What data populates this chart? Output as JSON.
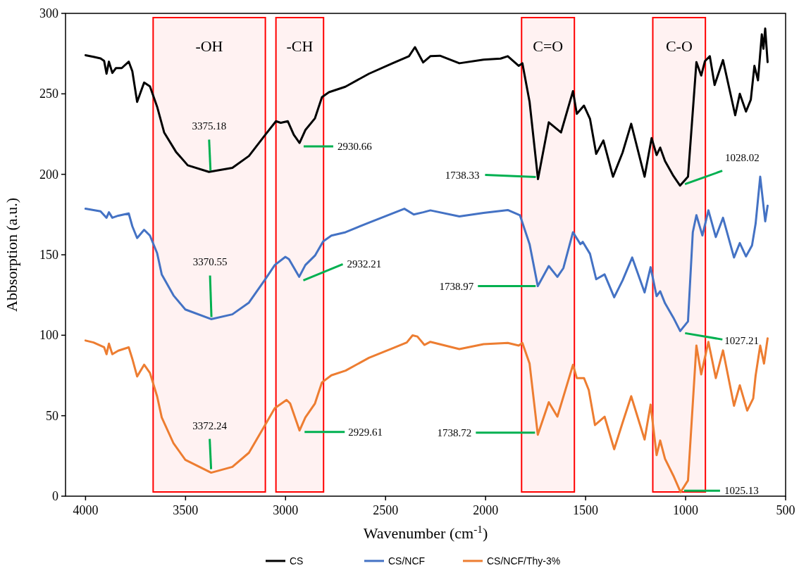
{
  "chart_data": {
    "type": "line",
    "xlabel": "Wavenumber (cm$^{-1}$)",
    "ylabel": "Abbsorption (a.u.)",
    "xlim": [
      4100,
      500
    ],
    "xticks": [
      4000,
      3500,
      3000,
      2500,
      2000,
      1500,
      1000,
      500
    ],
    "ylim": [
      0,
      300
    ],
    "yticks": [
      0,
      50,
      100,
      150,
      200,
      250,
      300
    ],
    "grid": false,
    "legend": "bottom",
    "marker": "none",
    "line_style": "solid",
    "series": [
      {
        "name": "CS",
        "color": "#000000",
        "x": [
          4000,
          3960,
          3925,
          3907,
          3895,
          3883,
          3866,
          3848,
          3819,
          3784,
          3766,
          3742,
          3707,
          3678,
          3642,
          3607,
          3548,
          3489,
          3383,
          3266,
          3183,
          3101,
          3048,
          3024,
          2989,
          2959,
          2930,
          2901,
          2853,
          2818,
          2783,
          2701,
          2583,
          2465,
          2383,
          2353,
          2312,
          2276,
          2228,
          2131,
          2010,
          1925,
          1889,
          1834,
          1816,
          1780,
          1738,
          1684,
          1623,
          1563,
          1544,
          1508,
          1478,
          1447,
          1411,
          1363,
          1315,
          1272,
          1205,
          1170,
          1145,
          1127,
          1103,
          1061,
          1028,
          988,
          946,
          922,
          903,
          879,
          855,
          813,
          752,
          729,
          698,
          674,
          656,
          638,
          619,
          611,
          602,
          590
        ],
        "values": [
          274,
          273,
          272,
          270.5,
          262.5,
          270,
          263,
          266,
          266,
          270,
          264,
          245,
          257,
          254.6,
          242,
          226,
          214,
          205.6,
          201.5,
          204,
          211.4,
          224.6,
          233,
          232,
          233,
          224.6,
          219.5,
          227.5,
          234.8,
          248,
          251,
          254.4,
          262.5,
          269,
          273.4,
          279,
          269.5,
          273.4,
          273.7,
          269,
          271.2,
          271.9,
          273.4,
          267.4,
          269,
          245,
          197,
          232.3,
          226,
          251.7,
          237.6,
          242.7,
          234.5,
          212.7,
          221,
          198.5,
          213.5,
          231.4,
          198.5,
          222.5,
          212,
          216.6,
          208.3,
          199,
          193,
          198.5,
          269.7,
          261.4,
          270.4,
          273.4,
          255.5,
          271,
          236.7,
          250,
          239,
          246.4,
          267.4,
          258.4,
          287,
          278,
          290.6,
          269.7
        ]
      },
      {
        "name": "CS/NCF",
        "color": "#4472c4",
        "x": [
          4000,
          3925,
          3895,
          3883,
          3866,
          3836,
          3784,
          3766,
          3742,
          3707,
          3678,
          3642,
          3619,
          3560,
          3501,
          3372,
          3266,
          3183,
          3101,
          3054,
          3001,
          2983,
          2932,
          2901,
          2853,
          2812,
          2771,
          2700,
          2583,
          2406,
          2359,
          2312,
          2276,
          2131,
          2010,
          1889,
          1828,
          1780,
          1739,
          1684,
          1641,
          1611,
          1563,
          1526,
          1514,
          1478,
          1447,
          1405,
          1357,
          1315,
          1267,
          1205,
          1175,
          1145,
          1127,
          1103,
          1061,
          1027,
          988,
          964,
          946,
          916,
          886,
          849,
          813,
          758,
          729,
          698,
          668,
          650,
          627,
          602,
          590
        ],
        "values": [
          178.6,
          177,
          173,
          176.4,
          173,
          174.3,
          175.7,
          167.7,
          160.4,
          165.5,
          161.9,
          151,
          137.8,
          124.7,
          116,
          110,
          113,
          120.3,
          134.9,
          143.6,
          148.7,
          147.3,
          136.3,
          143.6,
          149.5,
          158.3,
          161.9,
          164,
          170,
          178.6,
          175,
          176.4,
          177.6,
          173.8,
          176,
          177.8,
          174.5,
          156.6,
          130.5,
          143,
          136.3,
          141.7,
          164,
          156.6,
          158,
          150.6,
          134.8,
          137.8,
          123.6,
          134.1,
          148.3,
          126.6,
          142.3,
          124.3,
          127.3,
          119.9,
          110.9,
          102.6,
          108.6,
          164,
          174.6,
          162,
          177.6,
          161,
          173,
          148.3,
          157.3,
          149,
          155.8,
          169.3,
          198.5,
          170.8,
          180.5
        ]
      },
      {
        "name": "CS/NCF/Thy-3%",
        "color": "#ed7d31",
        "x": [
          4000,
          3960,
          3907,
          3895,
          3883,
          3866,
          3836,
          3784,
          3766,
          3742,
          3707,
          3678,
          3642,
          3619,
          3560,
          3501,
          3372,
          3266,
          3183,
          3101,
          3054,
          2995,
          2977,
          2930,
          2901,
          2853,
          2818,
          2771,
          2700,
          2583,
          2465,
          2394,
          2365,
          2341,
          2306,
          2276,
          2131,
          2010,
          1889,
          1834,
          1816,
          1780,
          1739,
          1684,
          1641,
          1563,
          1544,
          1508,
          1484,
          1453,
          1405,
          1357,
          1315,
          1272,
          1205,
          1175,
          1145,
          1127,
          1103,
          1061,
          1025,
          988,
          946,
          922,
          886,
          849,
          813,
          758,
          729,
          692,
          662,
          650,
          627,
          608,
          590
        ],
        "values": [
          96.7,
          95.5,
          92.5,
          88.2,
          94.8,
          88.2,
          90.4,
          92.5,
          85.3,
          74.4,
          81.7,
          76.6,
          62,
          48.9,
          32.8,
          22.6,
          14.6,
          18.2,
          27,
          44.5,
          54.7,
          59.8,
          57.6,
          40.8,
          48.9,
          57.6,
          70.7,
          75.1,
          78,
          86,
          91.9,
          95.5,
          99.9,
          99.2,
          94,
          95.9,
          91.4,
          94.5,
          95.2,
          93.6,
          95.2,
          82.4,
          38.2,
          58.4,
          49.4,
          81.6,
          73.4,
          73.4,
          65.9,
          44.2,
          49.4,
          29.2,
          45.7,
          62.1,
          35.2,
          56.9,
          25.5,
          34.6,
          23.2,
          12.7,
          2.5,
          9.8,
          93.6,
          75.7,
          95.9,
          73.4,
          90.6,
          56.2,
          68.9,
          53.2,
          60.7,
          74.9,
          93.6,
          82.4,
          98.1
        ]
      }
    ],
    "bands": [
      {
        "axis": "x",
        "from": 3662,
        "to": 3101,
        "label": "-OH",
        "color": "#ff0000"
      },
      {
        "axis": "x",
        "from": 3048,
        "to": 2810,
        "label": "-CH",
        "color": "#ff0000"
      },
      {
        "axis": "x",
        "from": 1820,
        "to": 1556,
        "label": "C=O",
        "color": "#ff0000"
      },
      {
        "axis": "x",
        "from": 1164,
        "to": 901,
        "label": "C-O",
        "color": "#ff0000"
      }
    ],
    "annotations": [
      {
        "text": "3375.18",
        "x": 3375.18,
        "y": 201
      },
      {
        "text": "2930.66",
        "x": 2930.66,
        "y": 219.5
      },
      {
        "text": "1738.33",
        "x": 1738.33,
        "y": 197
      },
      {
        "text": "1028.02",
        "x": 1028.02,
        "y": 193
      },
      {
        "text": "3370.55",
        "x": 3370.55,
        "y": 110
      },
      {
        "text": "2932.21",
        "x": 2932.21,
        "y": 136.3
      },
      {
        "text": "1738.97",
        "x": 1738.97,
        "y": 130.5
      },
      {
        "text": "1027.21",
        "x": 1027.21,
        "y": 102.6
      },
      {
        "text": "3372.24",
        "x": 3372.24,
        "y": 14.6
      },
      {
        "text": "2929.61",
        "x": 2929.61,
        "y": 40.8
      },
      {
        "text": "1738.72",
        "x": 1738.72,
        "y": 38.2
      },
      {
        "text": "1025.13",
        "x": 1025.13,
        "y": 2.5
      }
    ]
  }
}
